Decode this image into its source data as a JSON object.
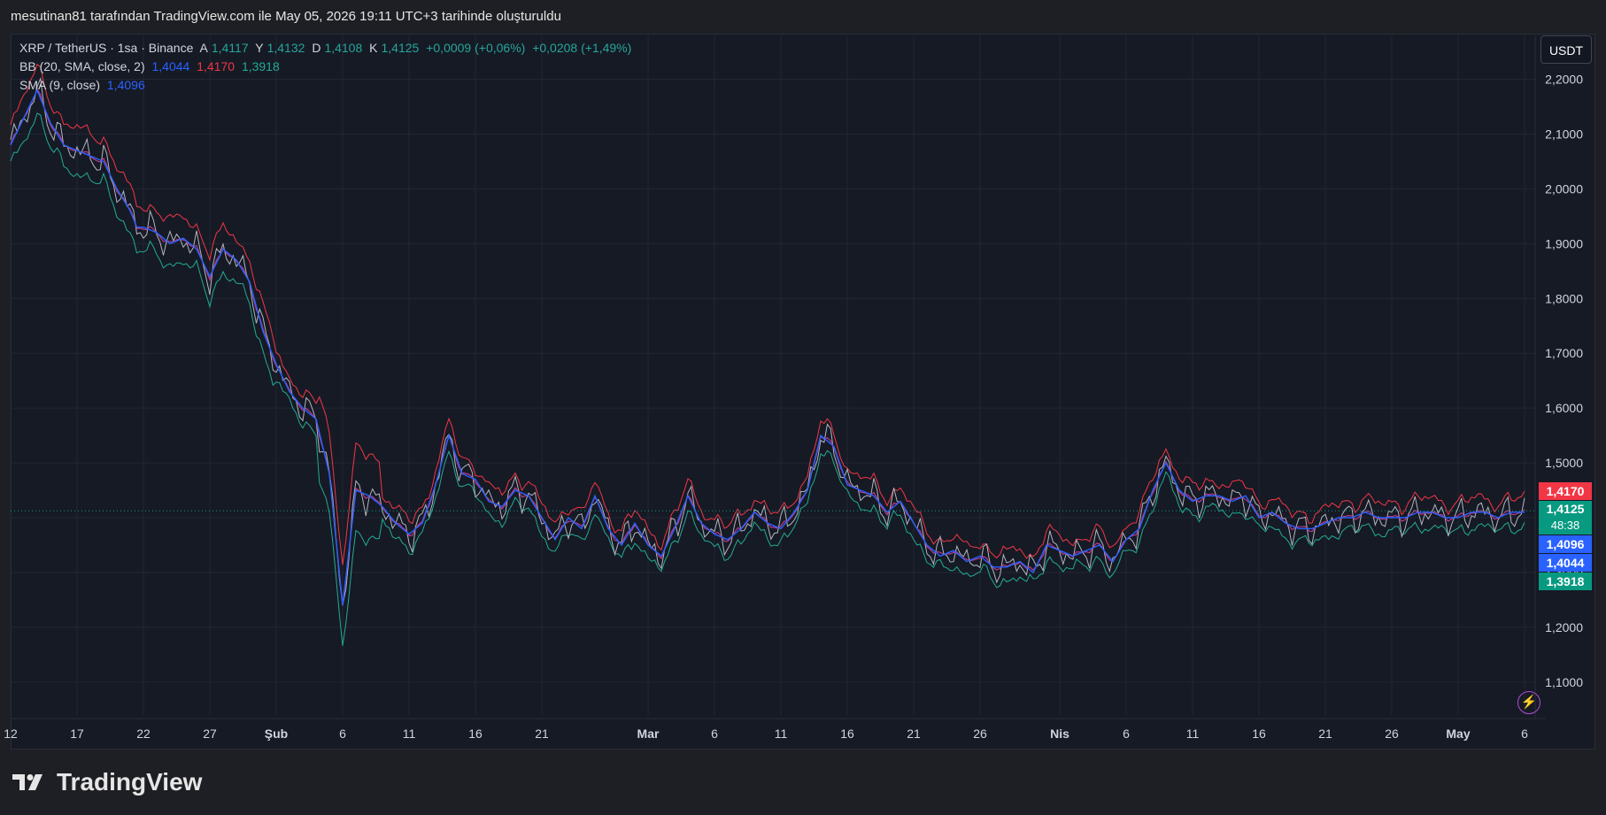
{
  "caption": "mesutinan81 tarafından TradingView.com ile May 05, 2026 19:11 UTC+3 tarihinde oluşturuldu",
  "legend": {
    "symbol": "XRP / TetherUS · 1sa · Binance",
    "o_label": "A",
    "o_val": "1,4117",
    "h_label": "Y",
    "h_val": "1,4132",
    "l_label": "D",
    "l_val": "1,4108",
    "c_label": "K",
    "c_val": "1,4125",
    "chg1": "+0,0009 (+0,06%)",
    "chg2": "+0,0208 (+1,49%)",
    "bb_label": "BB (20, SMA, close, 2)",
    "bb_basis": "1,4044",
    "bb_upper": "1,4170",
    "bb_lower": "1,3918",
    "sma_label": "SMA (9, close)",
    "sma_val": "1,4096"
  },
  "currency_button": "USDT",
  "price_tags": {
    "upper": "1,4170",
    "last": "1,4125",
    "countdown": "48:38",
    "sma": "1,4096",
    "basis": "1,4044",
    "lower": "1,3918"
  },
  "colors": {
    "upper_band": "#f23645",
    "lower_band": "#22ab94",
    "sma": "#2962ff",
    "price": "#b2b5be",
    "last_price_tag": "#089981"
  },
  "brand": "TradingView",
  "icons": {
    "alert": "lightning-bolt-icon",
    "logo": "tradingview-logo-icon"
  },
  "chart_data": {
    "type": "line",
    "symbol": "XRP / TetherUS",
    "interval": "1sa",
    "exchange": "Binance",
    "y_ticks": [
      "2,2000",
      "2,1000",
      "2,0000",
      "1,9000",
      "1,8000",
      "1,7000",
      "1,6000",
      "1,5000",
      "1,4000",
      "1,3000",
      "1,2000",
      "1,1000"
    ],
    "y_tick_values": [
      2.2,
      2.1,
      2.0,
      1.9,
      1.8,
      1.7,
      1.6,
      1.5,
      1.4,
      1.3,
      1.2,
      1.1
    ],
    "x_ticks": [
      "12",
      "17",
      "22",
      "27",
      "Şub",
      "6",
      "11",
      "16",
      "21",
      "Mar",
      "6",
      "11",
      "16",
      "21",
      "26",
      "Nis",
      "6",
      "11",
      "16",
      "21",
      "26",
      "May",
      "6"
    ],
    "x_tick_days": [
      0,
      5,
      10,
      15,
      20,
      25,
      30,
      35,
      40,
      48,
      53,
      58,
      63,
      68,
      73,
      79,
      84,
      89,
      94,
      99,
      104,
      109,
      114
    ],
    "ylim": [
      1.04,
      2.28
    ],
    "xlim": [
      0,
      114.8
    ],
    "grid": true,
    "series": [
      {
        "name": "SMA (9, close)",
        "x": [
          0,
          2,
          3,
          4,
          5,
          6,
          7,
          8,
          9,
          9.5,
          10,
          11,
          12,
          13,
          14,
          15,
          16,
          17,
          18,
          19,
          20,
          21,
          22,
          23,
          24,
          25,
          26,
          27,
          28,
          29,
          30,
          31,
          32,
          33,
          34,
          35,
          36,
          37,
          38,
          39,
          40,
          41,
          42,
          43,
          44,
          45,
          46,
          47,
          48,
          49,
          50,
          51,
          52,
          53,
          54,
          55,
          56,
          57,
          58,
          59,
          60,
          61,
          62,
          63,
          64,
          65,
          66,
          67,
          68,
          69,
          70,
          71,
          72,
          73,
          74,
          75,
          76,
          77,
          78,
          79,
          80,
          81,
          82,
          83,
          84,
          85,
          86,
          87,
          88,
          89,
          90,
          91,
          92,
          93,
          94,
          95,
          96,
          97,
          98,
          99,
          100,
          101,
          102,
          103,
          104,
          105,
          106,
          107,
          108,
          109,
          110,
          111,
          112,
          113,
          114
        ],
        "y": [
          2.08,
          2.18,
          2.12,
          2.08,
          2.07,
          2.06,
          2.05,
          2.0,
          1.96,
          1.93,
          1.93,
          1.92,
          1.9,
          1.91,
          1.89,
          1.84,
          1.89,
          1.87,
          1.83,
          1.74,
          1.68,
          1.63,
          1.6,
          1.58,
          1.48,
          1.24,
          1.45,
          1.44,
          1.42,
          1.39,
          1.37,
          1.39,
          1.46,
          1.55,
          1.48,
          1.47,
          1.43,
          1.42,
          1.45,
          1.44,
          1.4,
          1.36,
          1.4,
          1.38,
          1.44,
          1.38,
          1.35,
          1.39,
          1.35,
          1.33,
          1.38,
          1.44,
          1.39,
          1.37,
          1.36,
          1.38,
          1.41,
          1.39,
          1.38,
          1.41,
          1.45,
          1.55,
          1.53,
          1.46,
          1.45,
          1.44,
          1.41,
          1.43,
          1.39,
          1.35,
          1.33,
          1.34,
          1.32,
          1.33,
          1.31,
          1.31,
          1.32,
          1.3,
          1.35,
          1.34,
          1.33,
          1.34,
          1.35,
          1.32,
          1.36,
          1.38,
          1.45,
          1.5,
          1.45,
          1.43,
          1.44,
          1.44,
          1.43,
          1.44,
          1.4,
          1.41,
          1.39,
          1.38,
          1.38,
          1.39,
          1.4,
          1.4,
          1.41,
          1.4,
          1.4,
          1.4,
          1.41,
          1.41,
          1.4,
          1.4,
          1.41,
          1.41,
          1.4,
          1.41,
          1.41
        ]
      },
      {
        "name": "BB basis",
        "x": [
          0,
          114
        ],
        "y": [
          2.08,
          1.4044
        ]
      }
    ]
  }
}
